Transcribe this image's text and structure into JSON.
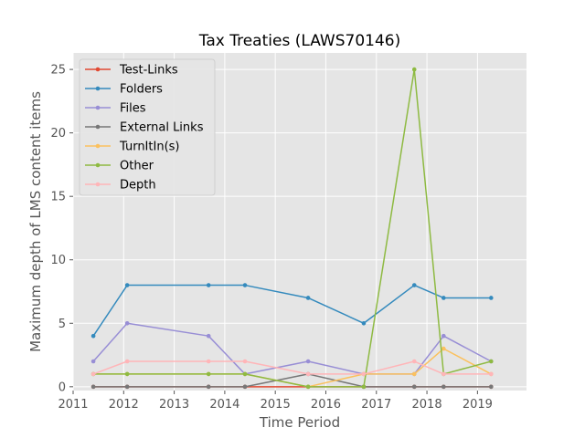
{
  "chart_data": {
    "type": "line",
    "title": "Tax Treaties (LAWS70146)",
    "xlabel": "Time Period",
    "ylabel": "Maximum depth of LMS content items",
    "xlim": [
      2011.0,
      2019.97
    ],
    "ylim": [
      -0.3,
      26.3
    ],
    "x_ticks": [
      "2011",
      "2012",
      "2013",
      "2014",
      "2015",
      "2016",
      "2017",
      "2018",
      "2019"
    ],
    "y_ticks": [
      "0",
      "5",
      "10",
      "15",
      "20",
      "25"
    ],
    "grid": true,
    "legend_position": "top-left",
    "series": [
      {
        "name": "Test-Links",
        "color": "#E24A33",
        "x": [
          2011.4,
          2012.07,
          2013.68,
          2014.4,
          2015.65,
          2016.75,
          2017.75,
          2018.33,
          2019.27
        ],
        "y": [
          0,
          0,
          0,
          0,
          0,
          0,
          0,
          0,
          0
        ]
      },
      {
        "name": "Folders",
        "color": "#348ABD",
        "x": [
          2011.4,
          2012.07,
          2013.68,
          2014.4,
          2015.65,
          2016.75,
          2017.75,
          2018.33,
          2019.27
        ],
        "y": [
          4,
          8,
          8,
          8,
          7,
          5,
          8,
          7,
          7
        ]
      },
      {
        "name": "Files",
        "color": "#988ED5",
        "x": [
          2011.4,
          2012.07,
          2013.68,
          2014.4,
          2015.65,
          2016.75,
          2017.75,
          2018.33,
          2019.27
        ],
        "y": [
          2,
          5,
          4,
          1,
          2,
          1,
          1,
          4,
          2
        ]
      },
      {
        "name": "External Links",
        "color": "#777777",
        "x": [
          2011.4,
          2012.07,
          2013.68,
          2014.4,
          2015.65,
          2016.75,
          2017.75,
          2018.33,
          2019.27
        ],
        "y": [
          0,
          0,
          0,
          0,
          1,
          0,
          0,
          0,
          0
        ]
      },
      {
        "name": "TurnItIn(s)",
        "color": "#FBC15E",
        "x": [
          2011.4,
          2012.07,
          2013.68,
          2014.4,
          2015.65,
          2016.75,
          2017.75,
          2018.33,
          2019.27
        ],
        "y": [
          1,
          1,
          1,
          1,
          0,
          1,
          1,
          3,
          1
        ]
      },
      {
        "name": "Other",
        "color": "#8EBA42",
        "x": [
          2011.4,
          2012.07,
          2013.68,
          2014.4,
          2015.65,
          2016.75,
          2017.75,
          2018.33,
          2019.27
        ],
        "y": [
          1,
          1,
          1,
          1,
          0,
          0,
          25,
          1,
          2
        ]
      },
      {
        "name": "Depth",
        "color": "#FFB5B8",
        "x": [
          2011.4,
          2012.07,
          2013.68,
          2014.4,
          2015.65,
          2016.75,
          2017.75,
          2018.33,
          2019.27
        ],
        "y": [
          1,
          2,
          2,
          2,
          1,
          1,
          2,
          1,
          1
        ]
      }
    ]
  }
}
